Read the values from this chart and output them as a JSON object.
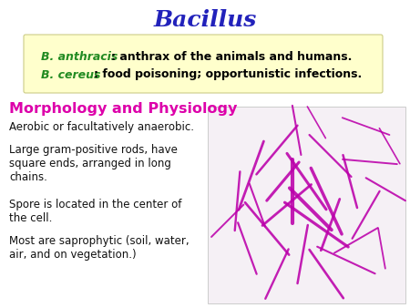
{
  "title": "Bacillus",
  "title_color": "#2222bb",
  "title_fontsize": 18,
  "title_style": "italic",
  "title_family": "serif",
  "highlight_box_color": "#ffffcc",
  "highlight_box_border": "#cccc88",
  "line1_italic": "B. anthracis",
  "line1_italic_color": "#228B22",
  "line1_rest": ": anthrax of the animals and humans.",
  "line1_rest_color": "#000000",
  "line2_italic": "B. cereus",
  "line2_italic_color": "#228B22",
  "line2_rest": ": food poisoning; opportunistic infections.",
  "line2_rest_color": "#000000",
  "section_title": "Morphology and Physiology",
  "section_title_color": "#dd00aa",
  "section_title_fontsize": 11.5,
  "bullet1": "Aerobic or facultatively anaerobic.",
  "bullet2": "Large gram-positive rods, have\nsquare ends, arranged in long\nchains.",
  "bullet3": "Spore is located in the center of\nthe cell.",
  "bullet4": "Most are saprophytic (soil, water,\nair, and on vegetation.)",
  "bullet_color": "#111111",
  "bullet_fontsize": 8.5,
  "img_bg_color": "#f5f0f5",
  "rod_color": "#bb00aa",
  "background_color": "#ffffff"
}
